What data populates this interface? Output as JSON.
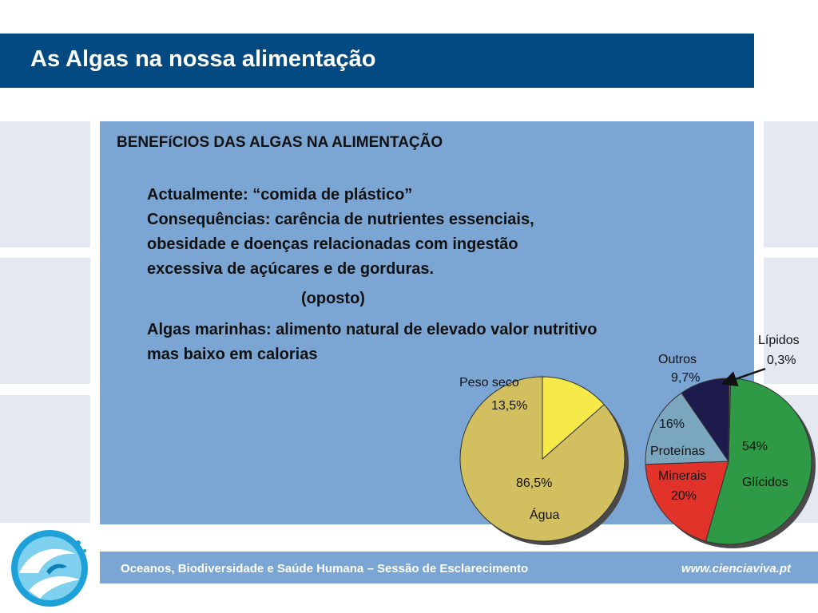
{
  "title": "As Algas na nossa alimentação",
  "content": {
    "heading": "BENEFíCIOS DAS ALGAS NA ALIMENTAÇÃO",
    "lines": [
      "Actualmente: “comida de plástico”",
      "Consequências: carência de nutrientes essenciais,",
      "obesidade e doenças relacionadas com ingestão",
      "excessiva de açúcares e de gorduras."
    ],
    "oposto": "(oposto)",
    "algas_lines": [
      "Algas marinhas: alimento natural de elevado valor nutritivo",
      "mas baixo em calorias"
    ]
  },
  "footer": {
    "left": "Oceanos, Biodiversidade e Saúde Humana – Sessão de Esclarecimento",
    "right": "www.cienciaviva.pt"
  },
  "chart_data": [
    {
      "type": "pie",
      "slices": [
        {
          "label": "Água",
          "value_label": "86,5%",
          "value": 86.5,
          "color": "#d2c060"
        },
        {
          "label": "Peso seco",
          "value_label": "13,5%",
          "value": 13.5,
          "color": "#f5ea4a"
        }
      ]
    },
    {
      "type": "pie",
      "slices": [
        {
          "label": "Glícidos",
          "value_label": "54%",
          "value": 54,
          "color": "#2f9a45"
        },
        {
          "label": "Minerais",
          "value_label": "20%",
          "value": 20,
          "color": "#e2332a"
        },
        {
          "label": "Proteínas",
          "value_label": "16%",
          "value": 16,
          "color": "#7aa7bf"
        },
        {
          "label": "Outros",
          "value_label": "9,7%",
          "value": 9.7,
          "color": "#1d1a4e"
        },
        {
          "label": "Lípidos",
          "value_label": "0,3%",
          "value": 0.3,
          "color": "#d0403a"
        }
      ]
    }
  ]
}
